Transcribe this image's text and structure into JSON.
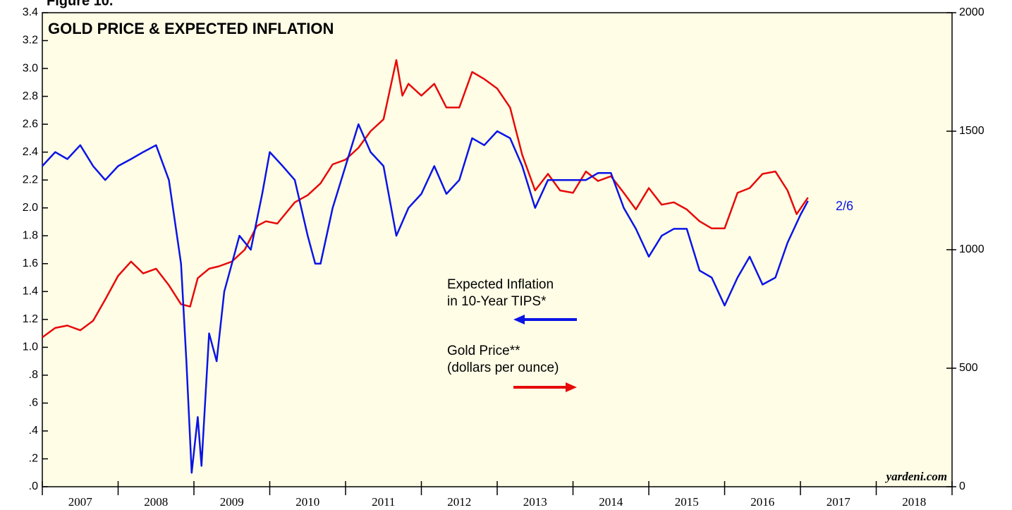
{
  "chart_data": {
    "type": "line",
    "figure_label": "Figure 10.",
    "title": "GOLD PRICE & EXPECTED INFLATION",
    "source": "yardeni.com",
    "annotations": {
      "inflation": [
        "Expected Inflation",
        "in 10-Year TIPS*"
      ],
      "gold": [
        "Gold Price**",
        "(dollars per ounce)"
      ],
      "date": "2/6"
    },
    "xlim": [
      2007,
      2019
    ],
    "xticks": [
      2007,
      2008,
      2009,
      2010,
      2011,
      2012,
      2013,
      2014,
      2015,
      2016,
      2017,
      2018,
      2019
    ],
    "xtick_labels": [
      "2007",
      "2008",
      "2009",
      "2010",
      "2011",
      "2012",
      "2013",
      "2014",
      "2015",
      "2016",
      "2017",
      "2018"
    ],
    "ylim": [
      0,
      3.4
    ],
    "yticks": [
      {
        "value": 0,
        "label": ".0"
      },
      {
        "value": 0.2,
        "label": ".2"
      },
      {
        "value": 0.4,
        "label": ".4"
      },
      {
        "value": 0.6,
        "label": ".6"
      },
      {
        "value": 0.8,
        "label": ".8"
      },
      {
        "value": 1,
        "label": "1.0"
      },
      1.2,
      1.4,
      1.6,
      1.8,
      {
        "value": 2,
        "label": "2.0"
      },
      2.2,
      2.4,
      2.6,
      2.8,
      {
        "value": 3,
        "label": "3.0"
      },
      3.2,
      3.4
    ],
    "y2lim": [
      0,
      2000
    ],
    "y2ticks": [
      0,
      500,
      1000,
      1500,
      2000
    ],
    "series": [
      {
        "name": "Expected Inflation in 10-Year TIPS*",
        "color": "#0a14e6",
        "x": [
          2007.0,
          2007.17,
          2007.33,
          2007.5,
          2007.67,
          2007.83,
          2008.0,
          2008.17,
          2008.33,
          2008.5,
          2008.67,
          2008.83,
          2008.9,
          2008.97,
          2009.05,
          2009.1,
          2009.2,
          2009.3,
          2009.4,
          2009.5,
          2009.6,
          2009.75,
          2009.9,
          2010.0,
          2010.17,
          2010.33,
          2010.5,
          2010.6,
          2010.67,
          2010.83,
          2011.0,
          2011.17,
          2011.33,
          2011.5,
          2011.67,
          2011.83,
          2012.0,
          2012.17,
          2012.33,
          2012.5,
          2012.67,
          2012.83,
          2013.0,
          2013.17,
          2013.33,
          2013.5,
          2013.67,
          2013.83,
          2014.0,
          2014.17,
          2014.33,
          2014.5,
          2014.67,
          2014.83,
          2015.0,
          2015.17,
          2015.33,
          2015.5,
          2015.67,
          2015.83,
          2016.0,
          2016.17,
          2016.33,
          2016.5,
          2016.67,
          2016.83,
          2017.0,
          2017.1
        ],
        "values": [
          2.3,
          2.4,
          2.35,
          2.45,
          2.3,
          2.2,
          2.3,
          2.35,
          2.4,
          2.45,
          2.2,
          1.6,
          0.9,
          0.1,
          0.5,
          0.15,
          1.1,
          0.9,
          1.4,
          1.6,
          1.8,
          1.7,
          2.1,
          2.4,
          2.3,
          2.2,
          1.8,
          1.6,
          1.6,
          2.0,
          2.3,
          2.6,
          2.4,
          2.3,
          1.8,
          2.0,
          2.1,
          2.3,
          2.1,
          2.2,
          2.5,
          2.45,
          2.55,
          2.5,
          2.3,
          2.0,
          2.2,
          2.2,
          2.2,
          2.2,
          2.25,
          2.25,
          2.0,
          1.85,
          1.65,
          1.8,
          1.85,
          1.85,
          1.55,
          1.5,
          1.3,
          1.5,
          1.65,
          1.45,
          1.5,
          1.75,
          1.95,
          2.05
        ]
      },
      {
        "name": "Gold Price** (dollars per ounce)",
        "color": "#e60a0a",
        "axis": "y2",
        "x": [
          2007.0,
          2007.17,
          2007.33,
          2007.5,
          2007.67,
          2007.83,
          2008.0,
          2008.17,
          2008.33,
          2008.5,
          2008.67,
          2008.83,
          2008.95,
          2009.05,
          2009.2,
          2009.33,
          2009.5,
          2009.67,
          2009.83,
          2009.95,
          2010.1,
          2010.33,
          2010.5,
          2010.67,
          2010.83,
          2011.0,
          2011.17,
          2011.33,
          2011.5,
          2011.67,
          2011.75,
          2011.83,
          2012.0,
          2012.17,
          2012.33,
          2012.5,
          2012.67,
          2012.83,
          2013.0,
          2013.17,
          2013.33,
          2013.5,
          2013.67,
          2013.83,
          2014.0,
          2014.17,
          2014.33,
          2014.5,
          2014.67,
          2014.83,
          2015.0,
          2015.17,
          2015.33,
          2015.5,
          2015.67,
          2015.83,
          2016.0,
          2016.17,
          2016.33,
          2016.5,
          2016.67,
          2016.83,
          2016.95,
          2017.1
        ],
        "values": [
          630,
          670,
          680,
          660,
          700,
          790,
          890,
          950,
          900,
          920,
          850,
          770,
          760,
          880,
          920,
          930,
          950,
          1000,
          1100,
          1120,
          1110,
          1200,
          1230,
          1280,
          1360,
          1380,
          1430,
          1500,
          1550,
          1800,
          1650,
          1700,
          1650,
          1700,
          1600,
          1600,
          1750,
          1720,
          1680,
          1600,
          1400,
          1250,
          1320,
          1250,
          1240,
          1330,
          1290,
          1310,
          1240,
          1170,
          1260,
          1190,
          1200,
          1170,
          1120,
          1090,
          1090,
          1240,
          1260,
          1320,
          1330,
          1250,
          1150,
          1220
        ]
      }
    ]
  }
}
